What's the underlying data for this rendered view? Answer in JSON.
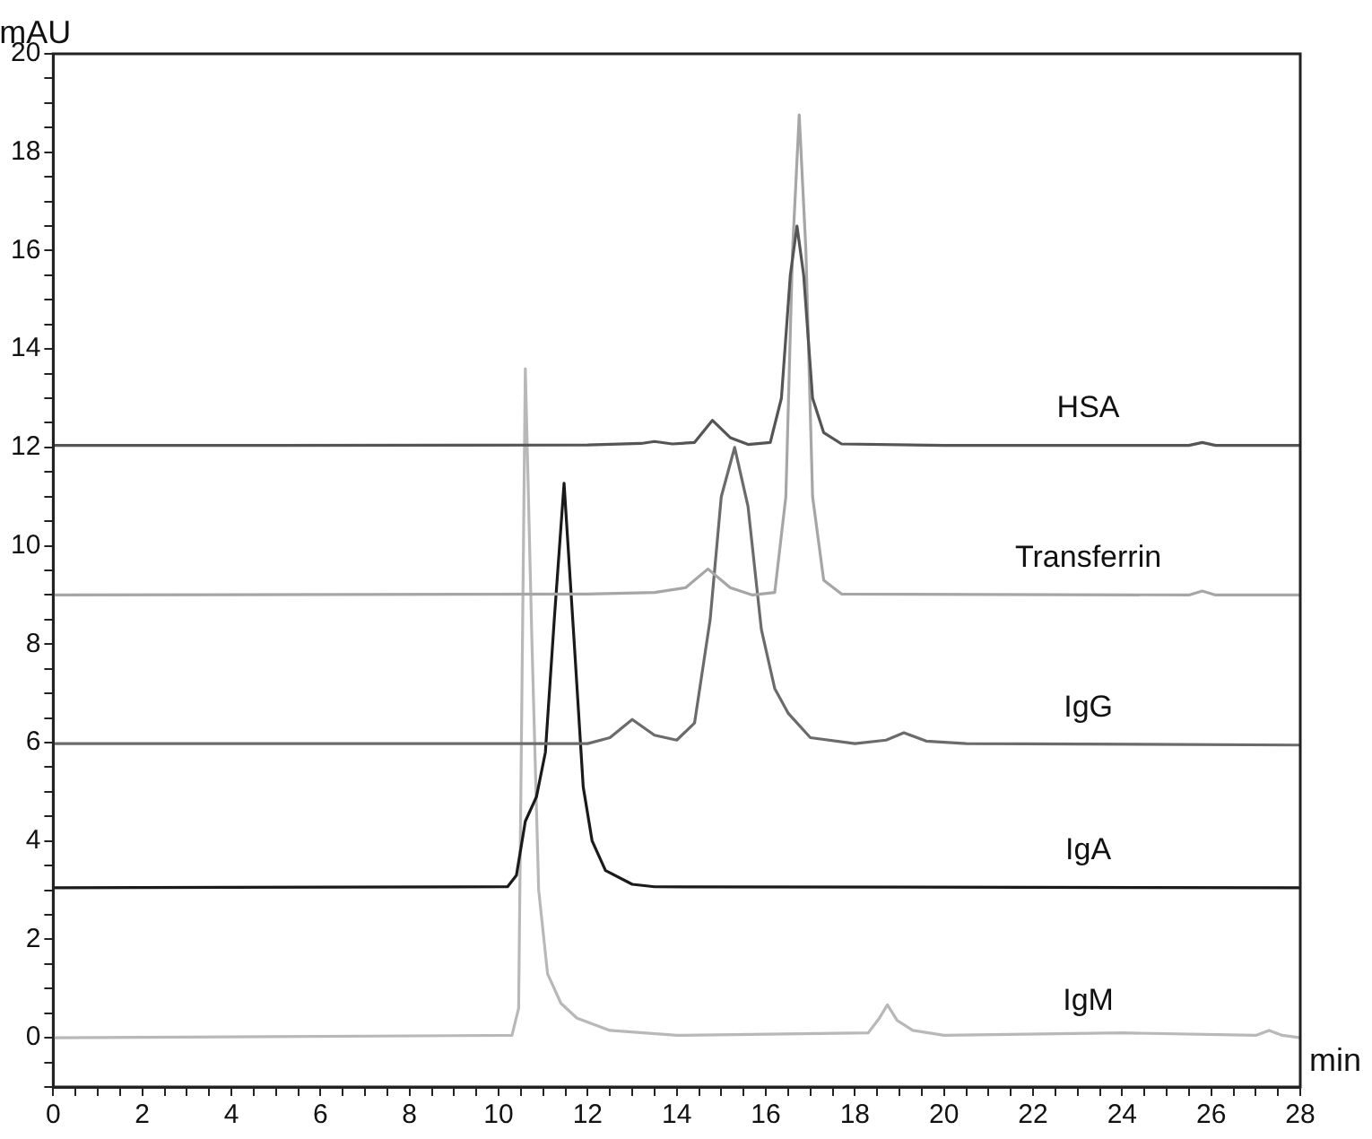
{
  "chart_data": {
    "type": "line",
    "xlabel": "min",
    "ylabel": "mAU",
    "xlim": [
      0,
      28
    ],
    "ylim": [
      -1,
      20
    ],
    "xticks": [
      0,
      {
        "value": 0.5,
        "label": null
      },
      {
        "value": 1,
        "label": null
      },
      {
        "value": 1.5,
        "label": null
      },
      2,
      {
        "value": 2.5,
        "label": null
      },
      {
        "value": 3,
        "label": null
      },
      {
        "value": 3.5,
        "label": null
      },
      4,
      {
        "value": 4.5,
        "label": null
      },
      {
        "value": 5,
        "label": null
      },
      {
        "value": 5.5,
        "label": null
      },
      6,
      {
        "value": 6.5,
        "label": null
      },
      {
        "value": 7,
        "label": null
      },
      {
        "value": 7.5,
        "label": null
      },
      8,
      {
        "value": 8.5,
        "label": null
      },
      {
        "value": 9,
        "label": null
      },
      {
        "value": 9.5,
        "label": null
      },
      10,
      {
        "value": 10.5,
        "label": null
      },
      {
        "value": 11,
        "label": null
      },
      {
        "value": 11.5,
        "label": null
      },
      12,
      {
        "value": 12.5,
        "label": null
      },
      {
        "value": 13,
        "label": null
      },
      {
        "value": 13.5,
        "label": null
      },
      14,
      {
        "value": 14.5,
        "label": null
      },
      {
        "value": 15,
        "label": null
      },
      {
        "value": 15.5,
        "label": null
      },
      16,
      {
        "value": 16.5,
        "label": null
      },
      {
        "value": 17,
        "label": null
      },
      {
        "value": 17.5,
        "label": null
      },
      18,
      {
        "value": 18.5,
        "label": null
      },
      {
        "value": 19,
        "label": null
      },
      {
        "value": 19.5,
        "label": null
      },
      20,
      {
        "value": 20.5,
        "label": null
      },
      {
        "value": 21,
        "label": null
      },
      {
        "value": 21.5,
        "label": null
      },
      22,
      {
        "value": 22.5,
        "label": null
      },
      {
        "value": 23,
        "label": null
      },
      {
        "value": 23.5,
        "label": null
      },
      24,
      {
        "value": 24.5,
        "label": null
      },
      {
        "value": 25,
        "label": null
      },
      {
        "value": 25.5,
        "label": null
      },
      26,
      {
        "value": 26.5,
        "label": null
      },
      {
        "value": 27,
        "label": null
      },
      {
        "value": 27.5,
        "label": null
      },
      28
    ],
    "yticks": [
      {
        "value": -1,
        "label": null
      },
      {
        "value": -0.5,
        "label": null
      },
      0,
      {
        "value": 0.5,
        "label": null
      },
      {
        "value": 1,
        "label": null
      },
      {
        "value": 1.5,
        "label": null
      },
      2,
      {
        "value": 2.5,
        "label": null
      },
      {
        "value": 3,
        "label": null
      },
      {
        "value": 3.5,
        "label": null
      },
      4,
      {
        "value": 4.5,
        "label": null
      },
      {
        "value": 5,
        "label": null
      },
      {
        "value": 5.5,
        "label": null
      },
      6,
      {
        "value": 6.5,
        "label": null
      },
      {
        "value": 7,
        "label": null
      },
      {
        "value": 7.5,
        "label": null
      },
      8,
      {
        "value": 8.5,
        "label": null
      },
      {
        "value": 9,
        "label": null
      },
      {
        "value": 9.5,
        "label": null
      },
      10,
      {
        "value": 10.5,
        "label": null
      },
      {
        "value": 11,
        "label": null
      },
      {
        "value": 11.5,
        "label": null
      },
      12,
      {
        "value": 12.5,
        "label": null
      },
      {
        "value": 13,
        "label": null
      },
      {
        "value": 13.5,
        "label": null
      },
      14,
      {
        "value": 14.5,
        "label": null
      },
      {
        "value": 15,
        "label": null
      },
      {
        "value": 15.5,
        "label": null
      },
      16,
      {
        "value": 16.5,
        "label": null
      },
      {
        "value": 17,
        "label": null
      },
      {
        "value": 17.5,
        "label": null
      },
      18,
      {
        "value": 18.5,
        "label": null
      },
      {
        "value": 19,
        "label": null
      },
      {
        "value": 19.5,
        "label": null
      },
      20
    ],
    "grid": false,
    "legend": false,
    "marker": "none",
    "line_style": "solid",
    "series": [
      {
        "name": "HSA",
        "color": "#555555",
        "x": [
          0,
          5,
          12,
          13.2,
          13.5,
          13.9,
          14.4,
          14.8,
          15.2,
          15.6,
          16.1,
          16.35,
          16.55,
          16.7,
          16.85,
          17.05,
          17.3,
          17.7,
          20,
          25.5,
          25.8,
          26.1,
          28
        ],
        "values": [
          12.04,
          12.04,
          12.05,
          12.08,
          12.12,
          12.07,
          12.1,
          12.55,
          12.2,
          12.06,
          12.1,
          13.0,
          15.5,
          16.5,
          15.5,
          13.0,
          12.3,
          12.07,
          12.04,
          12.04,
          12.1,
          12.04,
          12.04
        ]
      },
      {
        "name": "Transferrin",
        "color": "#a6a6a6",
        "x": [
          0,
          12,
          13.5,
          14.2,
          14.7,
          15.2,
          15.7,
          16.2,
          16.45,
          16.6,
          16.75,
          16.9,
          17.05,
          17.3,
          17.7,
          25.5,
          25.8,
          26.1,
          28
        ],
        "values": [
          9.0,
          9.02,
          9.05,
          9.15,
          9.53,
          9.15,
          9.0,
          9.05,
          11.0,
          16.0,
          18.76,
          16.0,
          11.0,
          9.3,
          9.02,
          9.0,
          9.08,
          9.0,
          9.0
        ]
      },
      {
        "name": "IgG",
        "color": "#6b6b6b",
        "x": [
          0,
          12,
          12.5,
          13.0,
          13.5,
          14.0,
          14.4,
          14.75,
          15.0,
          15.3,
          15.6,
          15.9,
          16.2,
          16.5,
          17.0,
          18.0,
          18.7,
          19.1,
          19.6,
          20.5,
          28
        ],
        "values": [
          5.98,
          5.98,
          6.1,
          6.47,
          6.15,
          6.05,
          6.4,
          8.5,
          11.0,
          12.0,
          10.8,
          8.3,
          7.1,
          6.6,
          6.1,
          5.98,
          6.05,
          6.2,
          6.03,
          5.98,
          5.95
        ]
      },
      {
        "name": "IgA",
        "color": "#1a1a1a",
        "x": [
          0,
          10.2,
          10.4,
          10.6,
          10.85,
          11.05,
          11.25,
          11.47,
          11.7,
          11.9,
          12.1,
          12.4,
          13.0,
          13.5,
          28
        ],
        "values": [
          3.05,
          3.07,
          3.3,
          4.4,
          4.9,
          5.8,
          8.5,
          11.27,
          8.0,
          5.1,
          4.0,
          3.4,
          3.12,
          3.07,
          3.05
        ]
      },
      {
        "name": "IgM",
        "color": "#b8b8b8",
        "x": [
          0,
          10.3,
          10.45,
          10.5,
          10.6,
          10.75,
          10.9,
          11.1,
          11.4,
          11.76,
          12.5,
          14,
          18.3,
          18.55,
          18.73,
          18.95,
          19.3,
          20,
          24,
          27,
          27.3,
          27.6,
          28
        ],
        "values": [
          0.0,
          0.05,
          0.6,
          5.0,
          13.6,
          8.0,
          3.0,
          1.3,
          0.7,
          0.4,
          0.15,
          0.05,
          0.1,
          0.4,
          0.67,
          0.35,
          0.15,
          0.05,
          0.1,
          0.05,
          0.15,
          0.05,
          0.0
        ]
      }
    ]
  }
}
